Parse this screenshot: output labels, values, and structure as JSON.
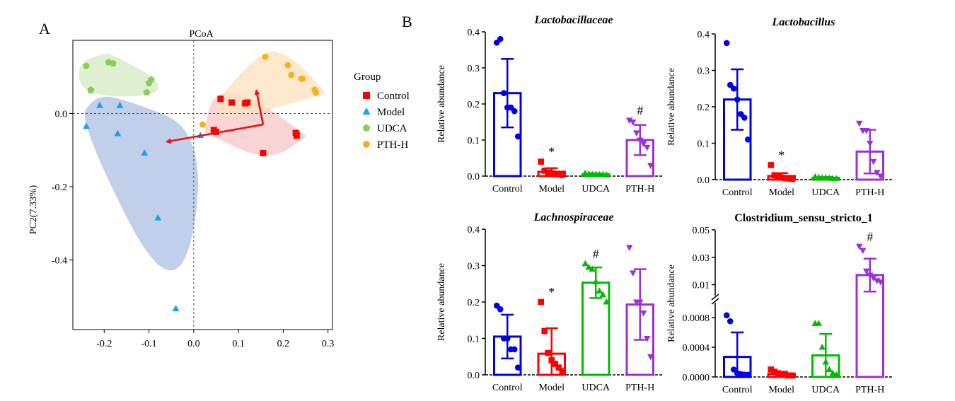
{
  "panel_labels": {
    "a": "A",
    "b": "B"
  },
  "colors": {
    "Control": "#ff0000",
    "Model": "#1aa3e6",
    "UDCA": "#8bcc5a",
    "PTH-H": "#f5b31b",
    "bar_Control": "#0000e0",
    "bar_Model": "#ff0000",
    "bar_UDCA": "#00bb00",
    "bar_PTH-H": "#9b30d9",
    "hull_Control": "#f8c9c9",
    "hull_Model": "#b3c3e6",
    "hull_UDCA": "#d7ebc6",
    "hull_PTH-H": "#fbe2c0",
    "arrow": "#ee1111"
  },
  "chart_data": [
    {
      "type": "scatter",
      "title": "PCoA",
      "xlabel": "",
      "ylabel": "PC2(7.33%)",
      "xlim": [
        -0.27,
        0.31
      ],
      "ylim": [
        -0.59,
        0.2
      ],
      "xticks": [
        "-0.2",
        "-0.1",
        "0.0",
        "0.1",
        "0.2",
        "0.3"
      ],
      "xtick_values": [
        -0.2,
        -0.1,
        0.0,
        0.1,
        0.2,
        0.3
      ],
      "yticks": [
        "0.0",
        "-0.2",
        "-0.4"
      ],
      "ytick_values": [
        0.0,
        -0.2,
        -0.4
      ],
      "legend_title": "Group",
      "legend": [
        "Control",
        "Model",
        "UDCA",
        "PTH-H"
      ],
      "series": [
        {
          "name": "Control",
          "marker": "square",
          "points": [
            [
              0.06,
              0.04
            ],
            [
              0.085,
              0.03
            ],
            [
              0.12,
              0.03
            ],
            [
              0.115,
              0.028
            ],
            [
              0.045,
              -0.045
            ],
            [
              0.05,
              -0.05
            ],
            [
              0.228,
              -0.053
            ],
            [
              0.23,
              -0.06
            ],
            [
              0.155,
              -0.108
            ]
          ]
        },
        {
          "name": "Model",
          "marker": "triangle",
          "points": [
            [
              -0.21,
              0.022
            ],
            [
              -0.165,
              0.022
            ],
            [
              -0.24,
              -0.035
            ],
            [
              -0.17,
              -0.055
            ],
            [
              -0.11,
              -0.108
            ],
            [
              -0.08,
              -0.285
            ],
            [
              -0.04,
              -0.533
            ],
            [
              0.015,
              -0.06
            ]
          ]
        },
        {
          "name": "UDCA",
          "marker": "pentagon",
          "points": [
            [
              -0.24,
              0.13
            ],
            [
              -0.19,
              0.14
            ],
            [
              -0.18,
              0.137
            ],
            [
              -0.095,
              0.093
            ],
            [
              -0.1,
              0.083
            ],
            [
              -0.23,
              0.065
            ],
            [
              -0.23,
              0.063
            ],
            [
              -0.105,
              0.058
            ]
          ]
        },
        {
          "name": "PTH-H",
          "marker": "circle",
          "points": [
            [
              0.16,
              0.155
            ],
            [
              0.21,
              0.132
            ],
            [
              0.218,
              0.105
            ],
            [
              0.24,
              0.095
            ],
            [
              0.243,
              0.095
            ],
            [
              0.27,
              0.065
            ],
            [
              0.273,
              0.057
            ],
            [
              0.02,
              -0.03
            ]
          ]
        }
      ],
      "arrows": [
        [
          0.155,
          -0.03,
          0.14,
          0.063
        ],
        [
          0.155,
          -0.03,
          -0.06,
          -0.077
        ]
      ]
    },
    {
      "type": "bar",
      "title": "Lactobacillaceae",
      "ylabel": "Relative abundance",
      "categories": [
        "Control",
        "Model",
        "UDCA",
        "PTH-H"
      ],
      "values": [
        0.23,
        0.012,
        0.005,
        0.1
      ],
      "errors": [
        0.095,
        0.01,
        0.002,
        0.042
      ],
      "ylim": [
        0,
        0.4
      ],
      "yticks": [
        "0.0",
        "0.1",
        "0.2",
        "0.3",
        "0.4"
      ],
      "ytick_values": [
        0,
        0.1,
        0.2,
        0.3,
        0.4
      ],
      "points": [
        [
          0.37,
          0.38,
          0.23,
          0.19,
          0.19,
          0.18,
          0.11
        ],
        [
          0.04,
          0.015,
          0.01,
          0.008,
          0.005,
          0.005,
          0.003
        ],
        [
          0.008,
          0.006,
          0.005,
          0.005,
          0.004,
          0.004,
          0.003
        ],
        [
          0.155,
          0.15,
          0.12,
          0.1,
          0.09,
          0.08,
          0.03
        ]
      ],
      "annotations": [
        "",
        "*",
        "",
        "#"
      ]
    },
    {
      "type": "bar",
      "title": "Lactobacillus",
      "ylabel": "Relative abundance",
      "categories": [
        "Control",
        "Model",
        "UDCA",
        "PTH-H"
      ],
      "values": [
        0.22,
        0.01,
        0.005,
        0.077
      ],
      "errors": [
        0.083,
        0.008,
        0.002,
        0.06
      ],
      "ylim": [
        0,
        0.4
      ],
      "yticks": [
        "0.0",
        "0.1",
        "0.2",
        "0.3",
        "0.4"
      ],
      "ytick_values": [
        0,
        0.1,
        0.2,
        0.3,
        0.4
      ],
      "points": [
        [
          0.375,
          0.26,
          0.25,
          0.22,
          0.18,
          0.17,
          0.11
        ],
        [
          0.04,
          0.012,
          0.008,
          0.006,
          0.004,
          0.003,
          0.002
        ],
        [
          0.008,
          0.006,
          0.005,
          0.005,
          0.004,
          0.003,
          0.003
        ],
        [
          0.155,
          0.135,
          0.135,
          0.1,
          0.05,
          0.02,
          0.01
        ]
      ],
      "annotations": [
        "",
        "*",
        "",
        ""
      ]
    },
    {
      "type": "bar",
      "title": "Lachnospiraceae",
      "ylabel": "Relative abundance",
      "categories": [
        "Control",
        "Model",
        "UDCA",
        "PTH-H"
      ],
      "values": [
        0.105,
        0.058,
        0.253,
        0.193
      ],
      "errors": [
        0.06,
        0.07,
        0.042,
        0.097
      ],
      "ylim": [
        0,
        0.4
      ],
      "yticks": [
        "0.0",
        "0.1",
        "0.2",
        "0.3",
        "0.4"
      ],
      "ytick_values": [
        0,
        0.1,
        0.2,
        0.3,
        0.4
      ],
      "points": [
        [
          0.19,
          0.18,
          0.1,
          0.1,
          0.07,
          0.07,
          0.02
        ],
        [
          0.2,
          0.12,
          0.06,
          0.04,
          0.03,
          0.02,
          0.01
        ],
        [
          0.305,
          0.295,
          0.29,
          0.255,
          0.23,
          0.22,
          0.2
        ],
        [
          0.35,
          0.28,
          0.2,
          0.2,
          0.17,
          0.1,
          0.05
        ]
      ],
      "annotations": [
        "",
        "*",
        "#",
        ""
      ]
    },
    {
      "type": "bar",
      "title": "Clostridium_sensu_stricto_1",
      "ylabel": "Relative abundance",
      "broken_axis": true,
      "categories": [
        "Control",
        "Model",
        "UDCA",
        "PTH-H"
      ],
      "values": [
        0.00027,
        4e-05,
        0.00029,
        0.017
      ],
      "errors": [
        0.00033,
        3e-05,
        0.00029,
        0.012
      ],
      "ylim_lower": [
        0,
        0.001
      ],
      "ylim_upper": [
        0.002,
        0.05
      ],
      "yticks_lower": [
        "0.0000",
        "0.0004",
        "0.0008"
      ],
      "ytick_values_lower": [
        0,
        0.0004,
        0.0008
      ],
      "yticks_upper": [
        "0.01",
        "0.03",
        "0.05"
      ],
      "ytick_values_upper": [
        0.01,
        0.03,
        0.05
      ],
      "points": [
        [
          0.00083,
          0.00075,
          0.0001,
          5e-05,
          4e-05,
          3e-05,
          3e-05
        ],
        [
          0.0001,
          7e-05,
          5e-05,
          3e-05,
          3e-05,
          2e-05,
          2e-05
        ],
        [
          0.00072,
          0.00072,
          0.0004,
          0.0002,
          0.0001,
          5e-05,
          3e-05
        ],
        [
          0.038,
          0.035,
          0.02,
          0.017,
          0.015,
          0.013,
          0.012
        ]
      ],
      "annotations": [
        "",
        "",
        "",
        "#"
      ]
    }
  ]
}
